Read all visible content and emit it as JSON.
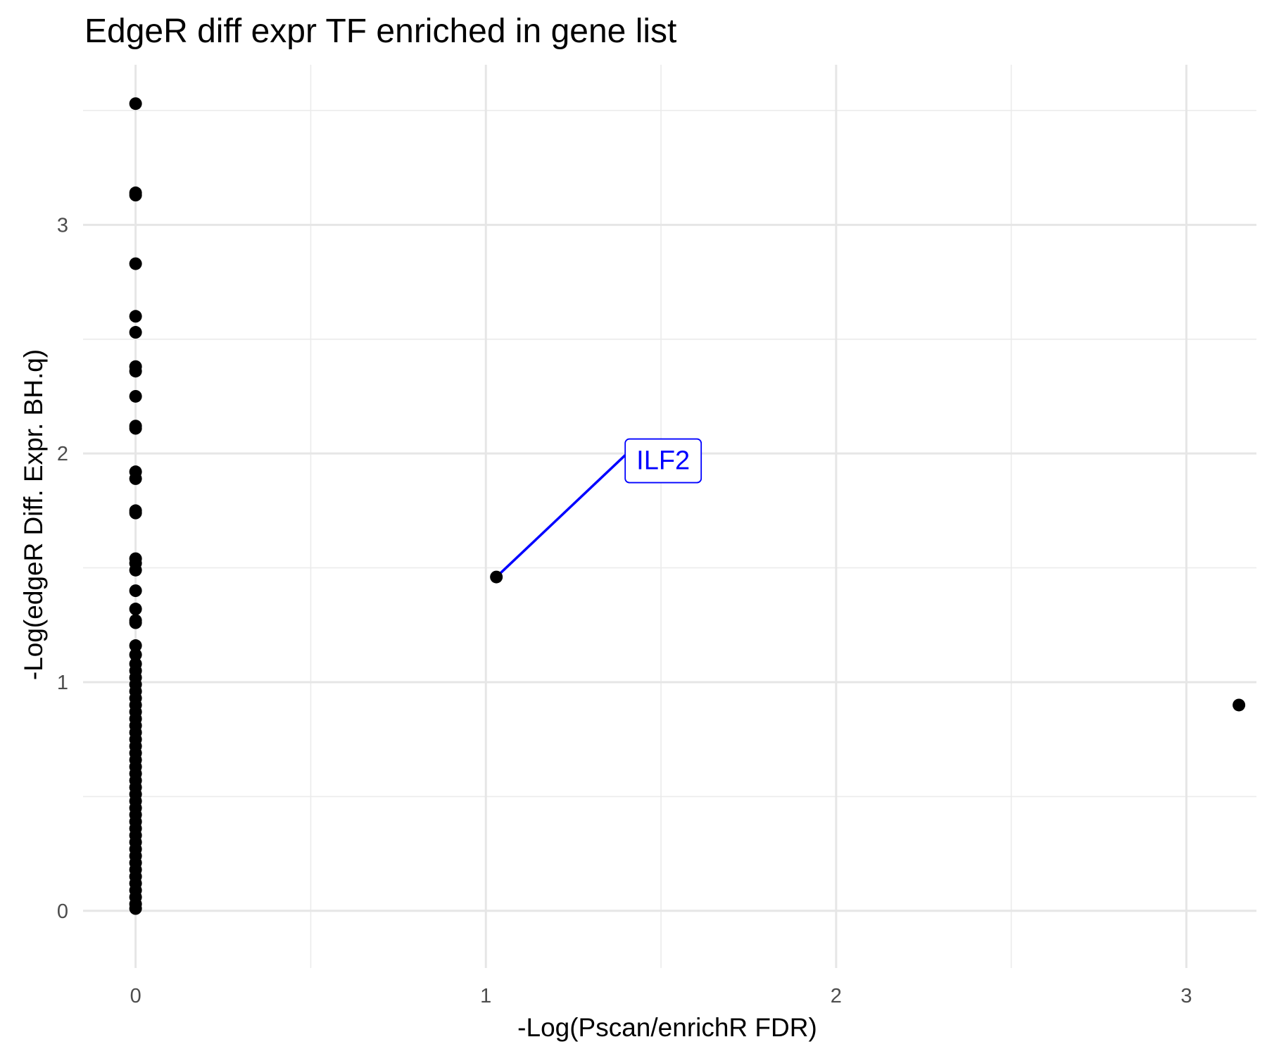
{
  "chart_data": {
    "type": "scatter",
    "title": "EdgeR diff expr TF enriched in gene list",
    "xlabel": "-Log(Pscan/enrichR FDR)",
    "ylabel": "-Log(edgeR Diff. Expr. BH.q)",
    "xlim": [
      -0.15,
      3.2
    ],
    "ylim": [
      -0.25,
      3.7
    ],
    "x_ticks": [
      0,
      1,
      2,
      3
    ],
    "y_ticks": [
      0,
      1,
      2,
      3
    ],
    "x_tick_labels": [
      "0",
      "1",
      "2",
      "3"
    ],
    "y_tick_labels": [
      "0",
      "1",
      "2",
      "3"
    ],
    "grid": true,
    "point_color": "#000000",
    "label_color": "#0000ff",
    "points": [
      {
        "x": 0,
        "y": 3.53
      },
      {
        "x": 0,
        "y": 3.14
      },
      {
        "x": 0,
        "y": 3.13
      },
      {
        "x": 0,
        "y": 2.83
      },
      {
        "x": 0,
        "y": 2.6
      },
      {
        "x": 0,
        "y": 2.53
      },
      {
        "x": 0,
        "y": 2.38
      },
      {
        "x": 0,
        "y": 2.36
      },
      {
        "x": 0,
        "y": 2.25
      },
      {
        "x": 0,
        "y": 2.12
      },
      {
        "x": 0,
        "y": 2.11
      },
      {
        "x": 0,
        "y": 1.92
      },
      {
        "x": 0,
        "y": 1.89
      },
      {
        "x": 0,
        "y": 1.75
      },
      {
        "x": 0,
        "y": 1.74
      },
      {
        "x": 0,
        "y": 1.54
      },
      {
        "x": 0,
        "y": 1.52
      },
      {
        "x": 0,
        "y": 1.49
      },
      {
        "x": 0,
        "y": 1.4
      },
      {
        "x": 0,
        "y": 1.32
      },
      {
        "x": 0,
        "y": 1.27
      },
      {
        "x": 0,
        "y": 1.26
      },
      {
        "x": 0,
        "y": 1.16
      },
      {
        "x": 0,
        "y": 1.12
      },
      {
        "x": 0,
        "y": 1.08
      },
      {
        "x": 0,
        "y": 1.05
      },
      {
        "x": 0,
        "y": 1.02
      },
      {
        "x": 0,
        "y": 0.99
      },
      {
        "x": 0,
        "y": 0.96
      },
      {
        "x": 0,
        "y": 0.93
      },
      {
        "x": 0,
        "y": 0.9
      },
      {
        "x": 0,
        "y": 0.87
      },
      {
        "x": 0,
        "y": 0.84
      },
      {
        "x": 0,
        "y": 0.81
      },
      {
        "x": 0,
        "y": 0.78
      },
      {
        "x": 0,
        "y": 0.75
      },
      {
        "x": 0,
        "y": 0.72
      },
      {
        "x": 0,
        "y": 0.69
      },
      {
        "x": 0,
        "y": 0.66
      },
      {
        "x": 0,
        "y": 0.63
      },
      {
        "x": 0,
        "y": 0.6
      },
      {
        "x": 0,
        "y": 0.57
      },
      {
        "x": 0,
        "y": 0.54
      },
      {
        "x": 0,
        "y": 0.51
      },
      {
        "x": 0,
        "y": 0.48
      },
      {
        "x": 0,
        "y": 0.45
      },
      {
        "x": 0,
        "y": 0.42
      },
      {
        "x": 0,
        "y": 0.39
      },
      {
        "x": 0,
        "y": 0.36
      },
      {
        "x": 0,
        "y": 0.33
      },
      {
        "x": 0,
        "y": 0.3
      },
      {
        "x": 0,
        "y": 0.27
      },
      {
        "x": 0,
        "y": 0.24
      },
      {
        "x": 0,
        "y": 0.21
      },
      {
        "x": 0,
        "y": 0.18
      },
      {
        "x": 0,
        "y": 0.15
      },
      {
        "x": 0,
        "y": 0.12
      },
      {
        "x": 0,
        "y": 0.09
      },
      {
        "x": 0,
        "y": 0.06
      },
      {
        "x": 0,
        "y": 0.03
      },
      {
        "x": 0,
        "y": 0.01
      },
      {
        "x": 1.03,
        "y": 1.46,
        "label": "ILF2"
      },
      {
        "x": 3.15,
        "y": 0.9
      }
    ]
  }
}
